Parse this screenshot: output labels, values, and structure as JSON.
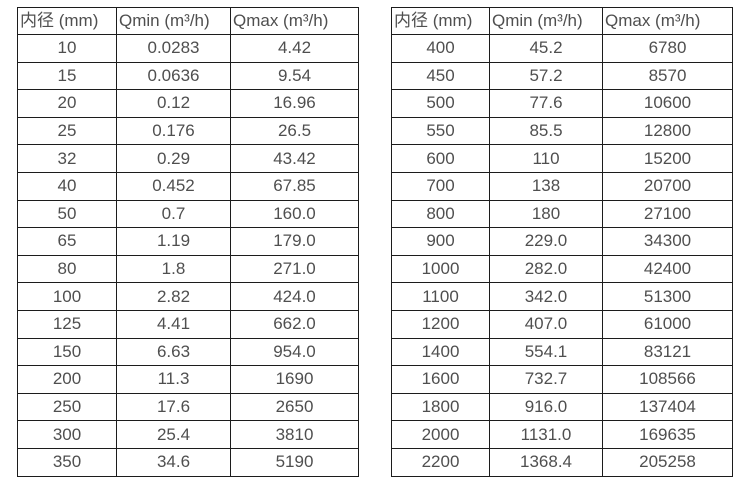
{
  "colors": {
    "text": "#4f4f4f",
    "border": "#1c1c1c",
    "background": "#ffffff"
  },
  "tables": [
    {
      "name": "flow-range-table-small-diameters",
      "headers": [
        "内径 (mm)",
        "Qmin (m³/h)",
        "Qmax (m³/h)"
      ],
      "rows": [
        [
          "10",
          "0.0283",
          "4.42"
        ],
        [
          "15",
          "0.0636",
          "9.54"
        ],
        [
          "20",
          "0.12",
          "16.96"
        ],
        [
          "25",
          "0.176",
          "26.5"
        ],
        [
          "32",
          "0.29",
          "43.42"
        ],
        [
          "40",
          "0.452",
          "67.85"
        ],
        [
          "50",
          "0.7",
          "160.0"
        ],
        [
          "65",
          "1.19",
          "179.0"
        ],
        [
          "80",
          "1.8",
          "271.0"
        ],
        [
          "100",
          "2.82",
          "424.0"
        ],
        [
          "125",
          "4.41",
          "662.0"
        ],
        [
          "150",
          "6.63",
          "954.0"
        ],
        [
          "200",
          "11.3",
          "1690"
        ],
        [
          "250",
          "17.6",
          "2650"
        ],
        [
          "300",
          "25.4",
          "3810"
        ],
        [
          "350",
          "34.6",
          "5190"
        ]
      ]
    },
    {
      "name": "flow-range-table-large-diameters",
      "headers": [
        "内径 (mm)",
        "Qmin (m³/h)",
        "Qmax (m³/h)"
      ],
      "rows": [
        [
          "400",
          "45.2",
          "6780"
        ],
        [
          "450",
          "57.2",
          "8570"
        ],
        [
          "500",
          "77.6",
          "10600"
        ],
        [
          "550",
          "85.5",
          "12800"
        ],
        [
          "600",
          "110",
          "15200"
        ],
        [
          "700",
          "138",
          "20700"
        ],
        [
          "800",
          "180",
          "27100"
        ],
        [
          "900",
          "229.0",
          "34300"
        ],
        [
          "1000",
          "282.0",
          "42400"
        ],
        [
          "1100",
          "342.0",
          "51300"
        ],
        [
          "1200",
          "407.0",
          "61000"
        ],
        [
          "1400",
          "554.1",
          "83121"
        ],
        [
          "1600",
          "732.7",
          "108566"
        ],
        [
          "1800",
          "916.0",
          "137404"
        ],
        [
          "2000",
          "1131.0",
          "169635"
        ],
        [
          "2200",
          "1368.4",
          "205258"
        ]
      ]
    }
  ]
}
